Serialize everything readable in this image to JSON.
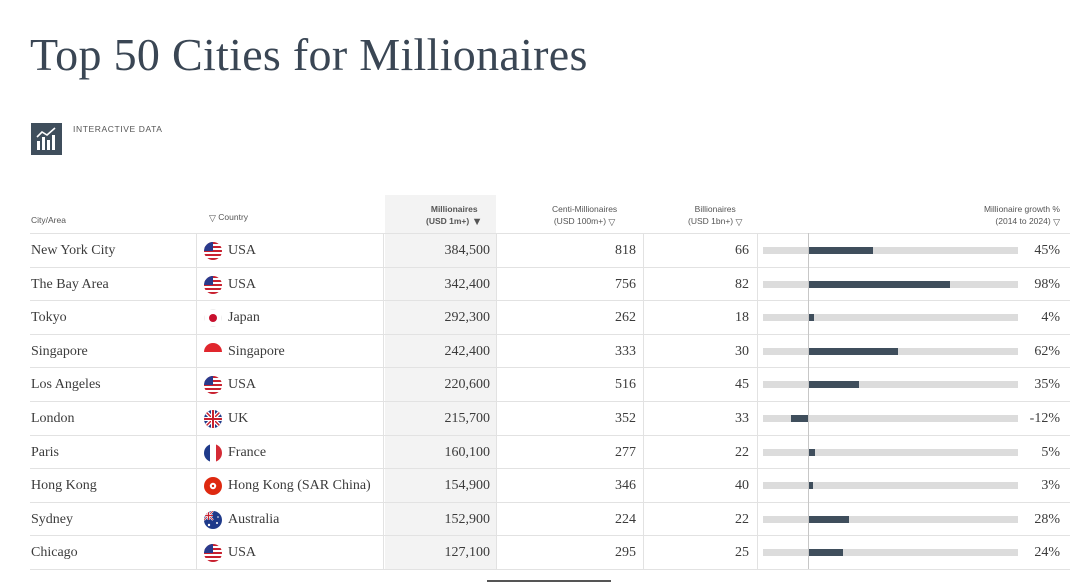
{
  "page": {
    "title": "Top 50 Cities for Millionaires"
  },
  "badge": {
    "label": "INTERACTIVE DATA",
    "icon": "bar-chart-icon"
  },
  "headers": {
    "city": "City/Area",
    "country": "Country",
    "millionaires_l1": "Millionaires",
    "millionaires_l2": "(USD 1m+)",
    "centi_l1": "Centi-Millionaires",
    "centi_l2": "(USD 100m+)",
    "billionaires_l1": "Billionaires",
    "billionaires_l2": "(USD 1bn+)",
    "growth_l1": "Millionaire growth %",
    "growth_l2": "(2014 to 2024)"
  },
  "colors": {
    "accent": "#3f4e5c",
    "track": "#dcdcdc",
    "sorted_bg": "#f3f3f3"
  },
  "rows": [
    {
      "city": "New York City",
      "country": "USA",
      "flag": "us",
      "millionaires": "384,500",
      "centi": "818",
      "billionaires": "66",
      "growth_label": "45%",
      "growth": 45
    },
    {
      "city": "The Bay Area",
      "country": "USA",
      "flag": "us",
      "millionaires": "342,400",
      "centi": "756",
      "billionaires": "82",
      "growth_label": "98%",
      "growth": 98
    },
    {
      "city": "Tokyo",
      "country": "Japan",
      "flag": "jp",
      "millionaires": "292,300",
      "centi": "262",
      "billionaires": "18",
      "growth_label": "4%",
      "growth": 4
    },
    {
      "city": "Singapore",
      "country": "Singapore",
      "flag": "sg",
      "millionaires": "242,400",
      "centi": "333",
      "billionaires": "30",
      "growth_label": "62%",
      "growth": 62
    },
    {
      "city": "Los Angeles",
      "country": "USA",
      "flag": "us",
      "millionaires": "220,600",
      "centi": "516",
      "billionaires": "45",
      "growth_label": "35%",
      "growth": 35
    },
    {
      "city": "London",
      "country": "UK",
      "flag": "uk",
      "millionaires": "215,700",
      "centi": "352",
      "billionaires": "33",
      "growth_label": "-12%",
      "growth": -12
    },
    {
      "city": "Paris",
      "country": "France",
      "flag": "fr",
      "millionaires": "160,100",
      "centi": "277",
      "billionaires": "22",
      "growth_label": "5%",
      "growth": 5
    },
    {
      "city": "Hong Kong",
      "country": "Hong Kong (SAR China)",
      "flag": "hk",
      "millionaires": "154,900",
      "centi": "346",
      "billionaires": "40",
      "growth_label": "3%",
      "growth": 3
    },
    {
      "city": "Sydney",
      "country": "Australia",
      "flag": "au",
      "millionaires": "152,900",
      "centi": "224",
      "billionaires": "22",
      "growth_label": "28%",
      "growth": 28
    },
    {
      "city": "Chicago",
      "country": "USA",
      "flag": "us",
      "millionaires": "127,100",
      "centi": "295",
      "billionaires": "25",
      "growth_label": "24%",
      "growth": 24
    }
  ]
}
